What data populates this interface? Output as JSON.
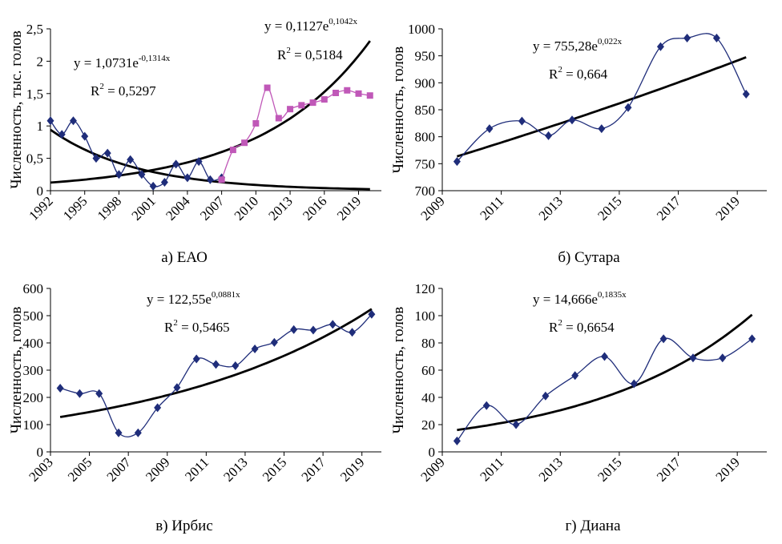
{
  "chart_data": [
    {
      "id": "eao",
      "type": "line",
      "caption": "а) ЕАО",
      "ylabel": "Численность, тыс. голов",
      "ylim": [
        0,
        2.5
      ],
      "yticks": [
        "0",
        "0,5",
        "1",
        "1,5",
        "2",
        "2,5"
      ],
      "yticks_values": [
        0,
        0.5,
        1,
        1.5,
        2,
        2.5
      ],
      "xlim": [
        1992,
        2021
      ],
      "xticks": [
        "1992",
        "1995",
        "1998",
        "2001",
        "2004",
        "2007",
        "2010",
        "2013",
        "2016",
        "2019"
      ],
      "xticks_values": [
        1992,
        1995,
        1998,
        2001,
        2004,
        2007,
        2010,
        2013,
        2016,
        2019
      ],
      "series": [
        {
          "color": "#1f2d7a",
          "marker": "diamond",
          "x": [
            1992,
            1993,
            1994,
            1995,
            1996,
            1997,
            1998,
            1999,
            2000,
            2001,
            2002,
            2003,
            2004,
            2005,
            2006,
            2007
          ],
          "y": [
            1.08,
            0.87,
            1.08,
            0.84,
            0.5,
            0.58,
            0.25,
            0.48,
            0.25,
            0.07,
            0.13,
            0.41,
            0.2,
            0.45,
            0.17,
            0.2
          ]
        },
        {
          "color": "#c058b8",
          "marker": "square",
          "x": [
            2007,
            2008,
            2009,
            2010,
            2011,
            2012,
            2013,
            2014,
            2015,
            2016,
            2017,
            2018,
            2019,
            2020
          ],
          "y": [
            0.17,
            0.63,
            0.74,
            1.04,
            1.59,
            1.12,
            1.26,
            1.32,
            1.36,
            1.41,
            1.51,
            1.55,
            1.5,
            1.47
          ]
        }
      ],
      "trendlines": [
        {
          "a": 1.0731,
          "b": -0.1314,
          "x0": 1991,
          "from": 1992,
          "to": 2020,
          "equation": "y = 1,0731e",
          "exponent": "-0,1314x",
          "r2": "R",
          "r2_value": " = 0,5297"
        },
        {
          "a": 0.1127,
          "b": 0.1042,
          "x0": 1991,
          "from": 1992,
          "to": 2020,
          "equation": "y = 0,1127e",
          "exponent": "0,1042x",
          "r2": "R",
          "r2_value": " = 0,5184"
        }
      ]
    },
    {
      "id": "sutara",
      "type": "line",
      "caption": "б) Сутара",
      "ylabel": "Численность, голов",
      "ylim": [
        700,
        1000
      ],
      "yticks": [
        "700",
        "750",
        "800",
        "850",
        "900",
        "950",
        "1000"
      ],
      "yticks_values": [
        700,
        750,
        800,
        850,
        900,
        950,
        1000
      ],
      "xlim": [
        2009,
        2020
      ],
      "xticks": [
        "2009",
        "2011",
        "2013",
        "2015",
        "2017",
        "2019"
      ],
      "xticks_values": [
        2009,
        2011,
        2013,
        2015,
        2017,
        2019
      ],
      "series": [
        {
          "color": "#1f2d7a",
          "marker": "diamond",
          "x": [
            2009.5,
            2010.6,
            2011.7,
            2012.6,
            2013.4,
            2014.4,
            2015.3,
            2016.4,
            2017.3,
            2018.3,
            2019.3
          ],
          "y": [
            754,
            815,
            829,
            802,
            831,
            815,
            854,
            967,
            983,
            983,
            879
          ]
        }
      ],
      "trendlines": [
        {
          "a": 755.28,
          "b": 0.022,
          "x0": 2009,
          "from": 2009.5,
          "to": 2019.3,
          "equation": "y = 755,28e",
          "exponent": "0,022x",
          "r2": "R",
          "r2_value": " = 0,664"
        }
      ]
    },
    {
      "id": "irbis",
      "type": "line",
      "caption": "в) Ирбис",
      "ylabel": "Численность, голов",
      "ylim": [
        0,
        600
      ],
      "yticks": [
        "0",
        "100",
        "200",
        "300",
        "400",
        "500",
        "600"
      ],
      "yticks_values": [
        0,
        100,
        200,
        300,
        400,
        500,
        600
      ],
      "xlim": [
        2003,
        2020
      ],
      "xticks": [
        "2003",
        "2005",
        "2007",
        "2009",
        "2011",
        "2013",
        "2015",
        "2017",
        "2019"
      ],
      "xticks_values": [
        2003,
        2005,
        2007,
        2009,
        2011,
        2013,
        2015,
        2017,
        2019
      ],
      "series": [
        {
          "color": "#1f2d7a",
          "marker": "diamond",
          "x": [
            2003.5,
            2004.5,
            2005.5,
            2006.5,
            2007.5,
            2008.5,
            2009.5,
            2010.5,
            2011.5,
            2012.5,
            2013.5,
            2014.5,
            2015.5,
            2016.5,
            2017.5,
            2018.5,
            2019.5
          ],
          "y": [
            234,
            214,
            214,
            70,
            70,
            162,
            236,
            341,
            321,
            316,
            378,
            402,
            449,
            447,
            468,
            439,
            505
          ]
        }
      ],
      "trendlines": [
        {
          "a": 122.55,
          "b": 0.0881,
          "x0": 2003,
          "from": 2003.5,
          "to": 2019.5,
          "equation": "y = 122,55e",
          "exponent": "0,0881x",
          "r2": "R",
          "r2_value": " = 0,5465"
        }
      ]
    },
    {
      "id": "diana",
      "type": "line",
      "caption": "г) Диана",
      "ylabel": "Численность, голов",
      "ylim": [
        0,
        120
      ],
      "yticks": [
        "0",
        "20",
        "40",
        "60",
        "80",
        "100",
        "120"
      ],
      "yticks_values": [
        0,
        20,
        40,
        60,
        80,
        100,
        120
      ],
      "xlim": [
        2009,
        2020
      ],
      "xticks": [
        "2009",
        "2011",
        "2013",
        "2015",
        "2017",
        "2019"
      ],
      "xticks_values": [
        2009,
        2011,
        2013,
        2015,
        2017,
        2019
      ],
      "series": [
        {
          "color": "#1f2d7a",
          "marker": "diamond",
          "x": [
            2009.5,
            2010.5,
            2011.5,
            2012.5,
            2013.5,
            2014.5,
            2015.5,
            2016.5,
            2017.5,
            2018.5,
            2019.5
          ],
          "y": [
            8,
            34,
            20,
            41,
            56,
            70,
            50,
            83,
            69,
            69,
            83
          ]
        }
      ],
      "trendlines": [
        {
          "a": 14.666,
          "b": 0.1835,
          "x0": 2009,
          "from": 2009.5,
          "to": 2019.5,
          "equation": "y = 14,666e",
          "exponent": "0,1835x",
          "r2": "R",
          "r2_value": " = 0,6654"
        }
      ]
    }
  ]
}
